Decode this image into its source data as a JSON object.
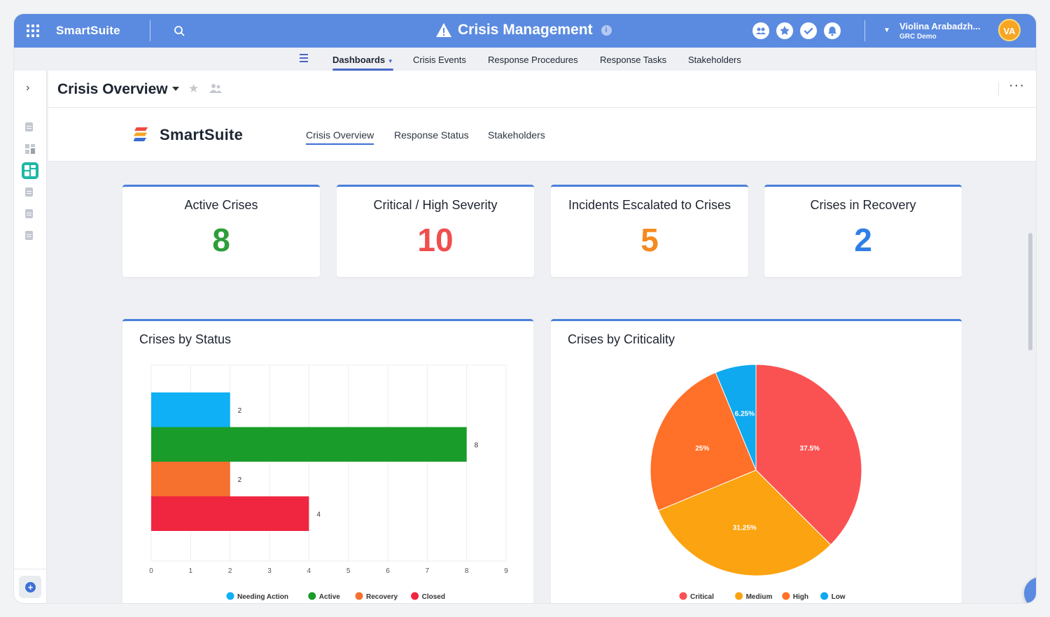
{
  "topbar": {
    "brand": "SmartSuite",
    "app_title": "Crisis Management",
    "info": "i",
    "user_name": "Violina Arabadzh...",
    "user_workspace": "GRC Demo",
    "avatar_initials": "VA",
    "icons": [
      "members-icon",
      "star-icon",
      "check-icon",
      "bell-icon"
    ]
  },
  "nav": {
    "tabs": [
      {
        "label": "Dashboards",
        "active": true
      },
      {
        "label": "Crisis Events"
      },
      {
        "label": "Response Procedures"
      },
      {
        "label": "Response Tasks"
      },
      {
        "label": "Stakeholders"
      }
    ]
  },
  "header": {
    "title": "Crisis Overview"
  },
  "subnav": {
    "logo_text": "SmartSuite",
    "tabs": [
      {
        "label": "Crisis Overview",
        "active": true
      },
      {
        "label": "Response Status"
      },
      {
        "label": "Stakeholders"
      }
    ]
  },
  "kpis": [
    {
      "label": "Active Crises",
      "value": "8",
      "color": "#2e9e3a"
    },
    {
      "label": "Critical / High Severity",
      "value": "10",
      "color": "#f04e4e"
    },
    {
      "label": "Incidents Escalated to Crises",
      "value": "5",
      "color": "#f58a1f"
    },
    {
      "label": "Crises in Recovery",
      "value": "2",
      "color": "#2f7fe6"
    }
  ],
  "chart_data": [
    {
      "type": "bar",
      "orientation": "horizontal",
      "title": "Crises by Status",
      "categories": [
        "Needing Action",
        "Active",
        "Recovery",
        "Closed"
      ],
      "values": [
        2,
        8,
        2,
        4
      ],
      "colors": [
        "#0fb0f5",
        "#1a9c2a",
        "#f6702e",
        "#f0253f"
      ],
      "xlim": [
        0,
        9
      ],
      "xticks": [
        "0",
        "1",
        "2",
        "3",
        "4",
        "5",
        "6",
        "7",
        "8",
        "9"
      ],
      "legend": "bottom"
    },
    {
      "type": "pie",
      "title": "Crises by Criticality",
      "labels": [
        "Critical",
        "Medium",
        "High",
        "Low"
      ],
      "values": [
        37.5,
        31.25,
        25,
        6.25
      ],
      "value_labels": [
        "37.5%",
        "31.25%",
        "25%",
        "6.25%"
      ],
      "colors": [
        "#fa5252",
        "#fca311",
        "#ff7029",
        "#0fa9ef"
      ],
      "legend": "bottom"
    }
  ]
}
